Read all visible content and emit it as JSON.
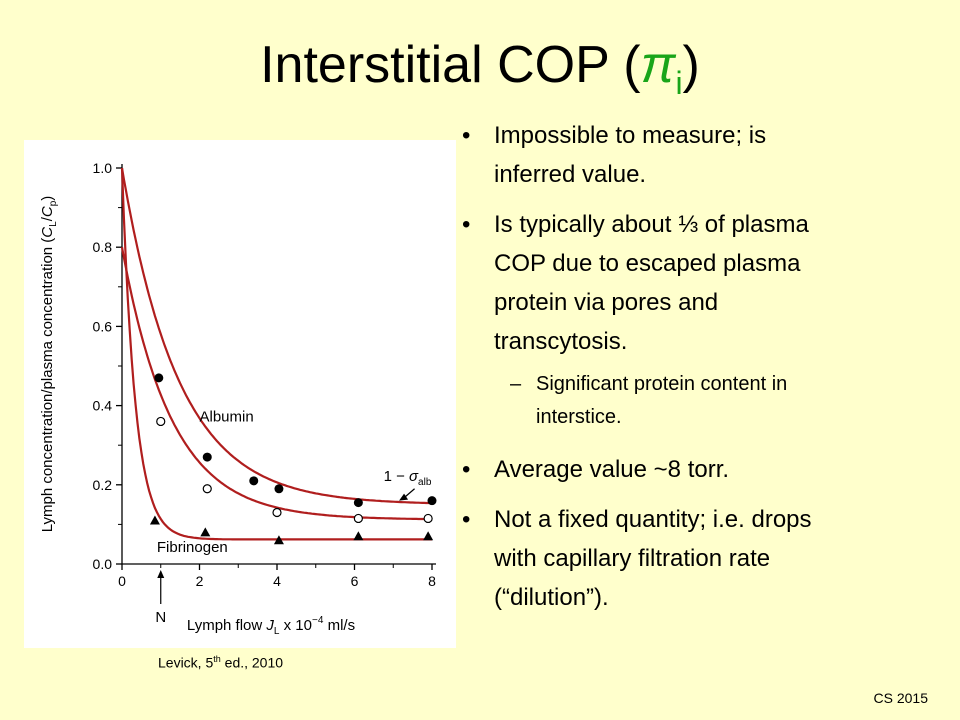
{
  "slide": {
    "title_main": "Interstitial COP (",
    "title_symbol": "π",
    "title_subscript": "i",
    "title_close": ")",
    "footer": "CS 2015",
    "citation": "Levick, 5",
    "citation_sup": "th",
    "citation_rest": " ed., 2010",
    "bullets": [
      {
        "lines": [
          "Impossible to measure; is",
          "inferred value."
        ]
      },
      {
        "lines": [
          "Is typically about ⅓ of plasma",
          "COP due to escaped plasma",
          "protein via pores and",
          "transcytosis."
        ],
        "sub": [
          "Significant protein content in",
          "interstice."
        ]
      },
      {
        "lines": [
          "Average value ~8 torr."
        ]
      },
      {
        "lines": [
          "Not a fixed quantity; i.e. drops",
          "with capillary filtration rate",
          "(“dilution”)."
        ]
      }
    ],
    "colors": {
      "background": "#ffffcc",
      "pi": "#19a519",
      "curve": "#b01e1e"
    }
  },
  "chart_data": {
    "type": "scatter",
    "ylabel": "Lymph concentration/plasma concentration (C_L/C_p)",
    "ylabel_parts": {
      "a": "Lymph concentration/plasma concentration (",
      "c1": "C",
      "s1": "L",
      "slash": "/",
      "c2": "C",
      "s2": "p",
      "end": ")"
    },
    "xlabel_parts": {
      "a": "Lymph flow ",
      "j": "J",
      "js": "L",
      "b": " x 10",
      "e": "−4",
      "c": " ml/s"
    },
    "xlim": [
      0,
      8
    ],
    "ylim": [
      0,
      1.0
    ],
    "x_ticks": [
      "0",
      "2",
      "4",
      "6",
      "8"
    ],
    "y_ticks": [
      "0.0",
      "0.2",
      "0.4",
      "0.6",
      "0.8",
      "1.0"
    ],
    "annotations": {
      "normal_label": "N",
      "normal_x": 1.0,
      "albumin_label": "Albumin",
      "fibrinogen_label": "Fibrinogen",
      "sigma_main": "1 − ",
      "sigma_sym": "σ",
      "sigma_sub": "alb"
    },
    "series": [
      {
        "name": "Albumin (filled)",
        "marker": "filled-circle",
        "x": [
          0.95,
          2.2,
          3.4,
          4.05,
          6.1,
          8.0
        ],
        "y": [
          0.47,
          0.27,
          0.21,
          0.19,
          0.155,
          0.16
        ]
      },
      {
        "name": "Albumin (open)",
        "marker": "open-circle",
        "x": [
          1.0,
          2.2,
          4.0,
          6.1,
          7.9
        ],
        "y": [
          0.36,
          0.19,
          0.13,
          0.115,
          0.115
        ]
      },
      {
        "name": "Fibrinogen",
        "marker": "triangle",
        "x": [
          0.85,
          2.15,
          4.05,
          6.1,
          7.9
        ],
        "y": [
          0.11,
          0.08,
          0.06,
          0.07,
          0.07
        ]
      }
    ],
    "curves": [
      {
        "name": "upper",
        "a": 0.15,
        "b": 0.85,
        "k": 0.68
      },
      {
        "name": "middle",
        "a": 0.112,
        "b": 0.688,
        "k": 0.78
      },
      {
        "name": "lower",
        "a": 0.062,
        "b": 0.938,
        "k": 2.9
      }
    ]
  }
}
